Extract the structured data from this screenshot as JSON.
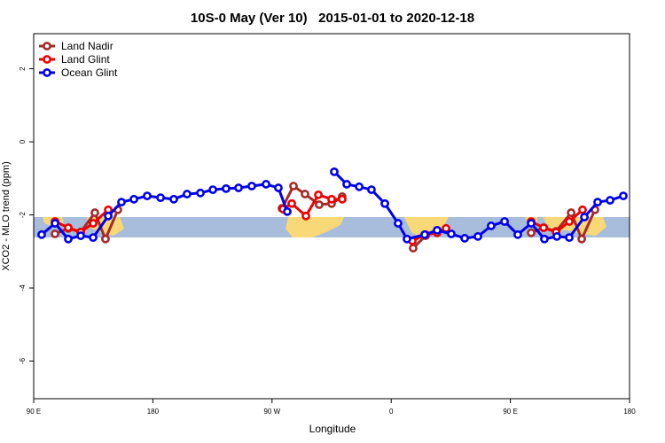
{
  "chart_data": {
    "type": "line",
    "title": "10S-0 May (Ver 10)   2015-01-01 to 2020-12-18",
    "x_label": "Longitude",
    "y_label": "XCO2 - MLO trend (ppm)",
    "xlim": [
      90,
      540
    ],
    "ylim": [
      -7.03,
      2.96
    ],
    "xticks": [
      {
        "value": 90,
        "label": "90 E"
      },
      {
        "value": 180,
        "label": "180"
      },
      {
        "value": 270,
        "label": "90 W"
      },
      {
        "value": 360,
        "label": "0"
      },
      {
        "value": 450,
        "label": "90 E"
      },
      {
        "value": 540,
        "label": "180"
      }
    ],
    "yticks": [
      -6,
      -4,
      -2,
      0,
      2
    ],
    "legend": "top-left",
    "series": [
      {
        "name": "Land Nadir",
        "color": "#a52a2a",
        "x": [
          106.1,
          116.1,
          125.5,
          136.2,
          144.2,
          153.6,
          null,
          277.5,
          286.2,
          294.9,
          305.6,
          315.0,
          323.0,
          null,
          376.6,
          386.0,
          394.7,
          null,
          465.7,
          475.1,
          484.5,
          495.9,
          503.9,
          513.9
        ],
        "values": [
          -2.52,
          -2.37,
          -2.47,
          -1.94,
          -2.66,
          -1.86,
          null,
          -1.82,
          -1.21,
          -1.43,
          -1.72,
          -1.69,
          -1.5,
          null,
          -2.91,
          -2.57,
          -2.45,
          null,
          -2.49,
          -2.35,
          -2.45,
          -1.94,
          -2.66,
          -1.86
        ]
      },
      {
        "name": "Land Glint",
        "color": "#ee0000",
        "x": [
          106.1,
          116.1,
          125.5,
          134.9,
          146.3,
          null,
          278.2,
          284.9,
          295.6,
          305.0,
          315.0,
          323.0,
          null,
          376.0,
          386.0,
          394.7,
          401.4,
          null,
          465.7,
          475.1,
          484.5,
          494.5,
          504.5
        ],
        "values": [
          -2.18,
          -2.35,
          -2.47,
          -2.23,
          -1.86,
          null,
          -1.84,
          -1.69,
          -2.03,
          -1.45,
          -1.57,
          -1.57,
          null,
          -2.71,
          -2.54,
          -2.49,
          -2.37,
          null,
          -2.18,
          -2.35,
          -2.47,
          -2.18,
          -1.86
        ]
      },
      {
        "name": "Ocean Glint",
        "color": "#0000ee",
        "x": [
          96.0,
          106.1,
          116.1,
          125.5,
          134.9,
          146.3,
          156.3,
          165.7,
          175.7,
          185.8,
          195.8,
          205.8,
          215.9,
          225.3,
          235.3,
          244.7,
          254.7,
          265.5,
          274.8,
          281.5,
          null,
          317.0,
          326.4,
          335.8,
          345.1,
          355.2,
          365.2,
          371.9,
          385.3,
          394.7,
          405.4,
          415.5,
          425.5,
          435.5,
          445.6,
          455.6,
          465.7,
          475.7,
          485.1,
          494.5,
          505.9,
          515.9,
          525.3,
          535.3
        ],
        "values": [
          -2.54,
          -2.23,
          -2.66,
          -2.57,
          -2.62,
          -2.03,
          -1.65,
          -1.57,
          -1.48,
          -1.53,
          -1.57,
          -1.43,
          -1.4,
          -1.31,
          -1.28,
          -1.26,
          -1.21,
          -1.16,
          -1.26,
          -1.91,
          null,
          -0.82,
          -1.16,
          -1.23,
          -1.31,
          -1.69,
          -2.23,
          -2.66,
          -2.54,
          -2.42,
          -2.52,
          -2.64,
          -2.59,
          -2.3,
          -2.18,
          -2.54,
          -2.23,
          -2.66,
          -2.59,
          -2.62,
          -2.06,
          -1.65,
          -1.6,
          -1.48
        ]
      }
    ]
  }
}
